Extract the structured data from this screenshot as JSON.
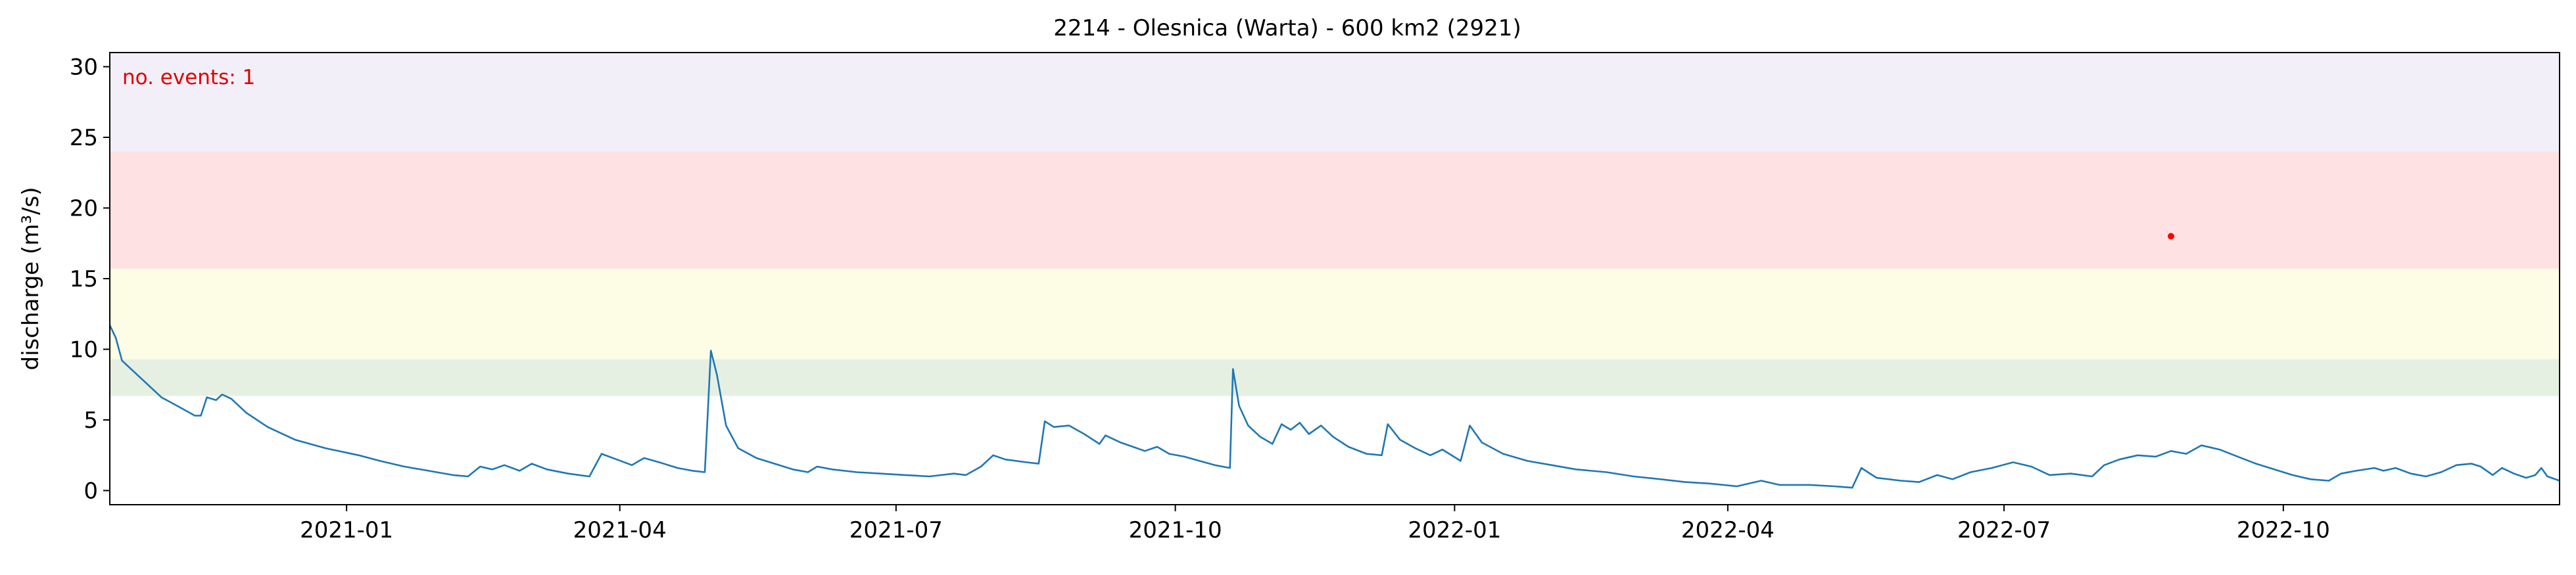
{
  "chart_data": {
    "type": "line",
    "title": "2214 - Olesnica (Warta) - 600 km2 (2921)",
    "ylabel": "discharge (m³/s)",
    "xlabel": "",
    "annotation": "no. events: 1",
    "x_range": [
      "2020-10-15",
      "2022-12-31"
    ],
    "ylim": [
      -1,
      31
    ],
    "x_ticks": [
      {
        "date": "2021-01-01",
        "label": "2021-01"
      },
      {
        "date": "2021-04-01",
        "label": "2021-04"
      },
      {
        "date": "2021-07-01",
        "label": "2021-07"
      },
      {
        "date": "2021-10-01",
        "label": "2021-10"
      },
      {
        "date": "2022-01-01",
        "label": "2022-01"
      },
      {
        "date": "2022-04-01",
        "label": "2022-04"
      },
      {
        "date": "2022-07-01",
        "label": "2022-07"
      },
      {
        "date": "2022-10-01",
        "label": "2022-10"
      }
    ],
    "y_ticks": [
      0,
      5,
      10,
      15,
      20,
      25,
      30
    ],
    "threshold_bands": [
      {
        "from": 6.7,
        "to": 9.3,
        "color": "#e5f0e3"
      },
      {
        "from": 9.3,
        "to": 15.7,
        "color": "#fdfde6"
      },
      {
        "from": 15.7,
        "to": 24.0,
        "color": "#fee2e3"
      },
      {
        "from": 24.0,
        "to": 31.0,
        "color": "#f3eff9"
      }
    ],
    "series": [
      {
        "color": "#1f77b4",
        "points": [
          [
            "2020-10-15",
            11.7
          ],
          [
            "2020-10-17",
            10.8
          ],
          [
            "2020-10-19",
            9.2
          ],
          [
            "2020-10-22",
            8.6
          ],
          [
            "2020-10-27",
            7.6
          ],
          [
            "2020-11-01",
            6.6
          ],
          [
            "2020-11-07",
            5.9
          ],
          [
            "2020-11-12",
            5.3
          ],
          [
            "2020-11-14",
            5.3
          ],
          [
            "2020-11-16",
            6.6
          ],
          [
            "2020-11-19",
            6.4
          ],
          [
            "2020-11-21",
            6.8
          ],
          [
            "2020-11-24",
            6.5
          ],
          [
            "2020-11-29",
            5.5
          ],
          [
            "2020-12-06",
            4.5
          ],
          [
            "2020-12-15",
            3.6
          ],
          [
            "2020-12-25",
            3.0
          ],
          [
            "2021-01-05",
            2.5
          ],
          [
            "2021-01-12",
            2.1
          ],
          [
            "2021-01-20",
            1.7
          ],
          [
            "2021-01-28",
            1.4
          ],
          [
            "2021-02-05",
            1.1
          ],
          [
            "2021-02-10",
            1.0
          ],
          [
            "2021-02-14",
            1.7
          ],
          [
            "2021-02-18",
            1.5
          ],
          [
            "2021-02-22",
            1.8
          ],
          [
            "2021-02-27",
            1.4
          ],
          [
            "2021-03-03",
            1.9
          ],
          [
            "2021-03-08",
            1.5
          ],
          [
            "2021-03-15",
            1.2
          ],
          [
            "2021-03-22",
            1.0
          ],
          [
            "2021-03-26",
            2.6
          ],
          [
            "2021-03-31",
            2.2
          ],
          [
            "2021-04-05",
            1.8
          ],
          [
            "2021-04-09",
            2.3
          ],
          [
            "2021-04-14",
            2.0
          ],
          [
            "2021-04-20",
            1.6
          ],
          [
            "2021-04-25",
            1.4
          ],
          [
            "2021-04-29",
            1.3
          ],
          [
            "2021-05-01",
            9.9
          ],
          [
            "2021-05-03",
            8.2
          ],
          [
            "2021-05-06",
            4.6
          ],
          [
            "2021-05-10",
            3.0
          ],
          [
            "2021-05-16",
            2.3
          ],
          [
            "2021-05-22",
            1.9
          ],
          [
            "2021-05-28",
            1.5
          ],
          [
            "2021-06-02",
            1.3
          ],
          [
            "2021-06-05",
            1.7
          ],
          [
            "2021-06-10",
            1.5
          ],
          [
            "2021-06-18",
            1.3
          ],
          [
            "2021-06-26",
            1.2
          ],
          [
            "2021-07-04",
            1.1
          ],
          [
            "2021-07-12",
            1.0
          ],
          [
            "2021-07-20",
            1.2
          ],
          [
            "2021-07-24",
            1.1
          ],
          [
            "2021-07-29",
            1.7
          ],
          [
            "2021-08-02",
            2.5
          ],
          [
            "2021-08-06",
            2.2
          ],
          [
            "2021-08-13",
            2.0
          ],
          [
            "2021-08-17",
            1.9
          ],
          [
            "2021-08-19",
            4.9
          ],
          [
            "2021-08-22",
            4.5
          ],
          [
            "2021-08-27",
            4.6
          ],
          [
            "2021-09-01",
            4.0
          ],
          [
            "2021-09-06",
            3.3
          ],
          [
            "2021-09-08",
            3.9
          ],
          [
            "2021-09-13",
            3.4
          ],
          [
            "2021-09-17",
            3.1
          ],
          [
            "2021-09-21",
            2.8
          ],
          [
            "2021-09-25",
            3.1
          ],
          [
            "2021-09-29",
            2.6
          ],
          [
            "2021-10-04",
            2.4
          ],
          [
            "2021-10-09",
            2.1
          ],
          [
            "2021-10-14",
            1.8
          ],
          [
            "2021-10-19",
            1.6
          ],
          [
            "2021-10-20",
            8.6
          ],
          [
            "2021-10-22",
            6.0
          ],
          [
            "2021-10-25",
            4.6
          ],
          [
            "2021-10-29",
            3.8
          ],
          [
            "2021-11-02",
            3.3
          ],
          [
            "2021-11-05",
            4.7
          ],
          [
            "2021-11-08",
            4.3
          ],
          [
            "2021-11-11",
            4.8
          ],
          [
            "2021-11-14",
            4.0
          ],
          [
            "2021-11-18",
            4.6
          ],
          [
            "2021-11-22",
            3.8
          ],
          [
            "2021-11-27",
            3.1
          ],
          [
            "2021-12-03",
            2.6
          ],
          [
            "2021-12-08",
            2.5
          ],
          [
            "2021-12-10",
            4.7
          ],
          [
            "2021-12-14",
            3.6
          ],
          [
            "2021-12-19",
            3.0
          ],
          [
            "2021-12-24",
            2.5
          ],
          [
            "2021-12-28",
            2.9
          ],
          [
            "2022-01-03",
            2.1
          ],
          [
            "2022-01-06",
            4.6
          ],
          [
            "2022-01-10",
            3.4
          ],
          [
            "2022-01-17",
            2.6
          ],
          [
            "2022-01-25",
            2.1
          ],
          [
            "2022-02-02",
            1.8
          ],
          [
            "2022-02-10",
            1.5
          ],
          [
            "2022-02-20",
            1.3
          ],
          [
            "2022-03-01",
            1.0
          ],
          [
            "2022-03-10",
            0.8
          ],
          [
            "2022-03-18",
            0.6
          ],
          [
            "2022-03-26",
            0.5
          ],
          [
            "2022-04-04",
            0.3
          ],
          [
            "2022-04-12",
            0.7
          ],
          [
            "2022-04-18",
            0.4
          ],
          [
            "2022-04-28",
            0.4
          ],
          [
            "2022-05-06",
            0.3
          ],
          [
            "2022-05-12",
            0.2
          ],
          [
            "2022-05-15",
            1.6
          ],
          [
            "2022-05-20",
            0.9
          ],
          [
            "2022-05-28",
            0.7
          ],
          [
            "2022-06-03",
            0.6
          ],
          [
            "2022-06-09",
            1.1
          ],
          [
            "2022-06-14",
            0.8
          ],
          [
            "2022-06-20",
            1.3
          ],
          [
            "2022-06-27",
            1.6
          ],
          [
            "2022-07-04",
            2.0
          ],
          [
            "2022-07-10",
            1.7
          ],
          [
            "2022-07-16",
            1.1
          ],
          [
            "2022-07-23",
            1.2
          ],
          [
            "2022-07-30",
            1.0
          ],
          [
            "2022-08-03",
            1.8
          ],
          [
            "2022-08-08",
            2.2
          ],
          [
            "2022-08-14",
            2.5
          ],
          [
            "2022-08-20",
            2.4
          ],
          [
            "2022-08-25",
            2.8
          ],
          [
            "2022-08-30",
            2.6
          ],
          [
            "2022-09-04",
            3.2
          ],
          [
            "2022-09-10",
            2.9
          ],
          [
            "2022-09-16",
            2.4
          ],
          [
            "2022-09-22",
            1.9
          ],
          [
            "2022-09-28",
            1.5
          ],
          [
            "2022-10-04",
            1.1
          ],
          [
            "2022-10-10",
            0.8
          ],
          [
            "2022-10-16",
            0.7
          ],
          [
            "2022-10-20",
            1.2
          ],
          [
            "2022-10-25",
            1.4
          ],
          [
            "2022-10-31",
            1.6
          ],
          [
            "2022-11-03",
            1.4
          ],
          [
            "2022-11-07",
            1.6
          ],
          [
            "2022-11-12",
            1.2
          ],
          [
            "2022-11-17",
            1.0
          ],
          [
            "2022-11-22",
            1.3
          ],
          [
            "2022-11-27",
            1.8
          ],
          [
            "2022-12-02",
            1.9
          ],
          [
            "2022-12-05",
            1.7
          ],
          [
            "2022-12-09",
            1.1
          ],
          [
            "2022-12-12",
            1.6
          ],
          [
            "2022-12-16",
            1.2
          ],
          [
            "2022-12-20",
            0.9
          ],
          [
            "2022-12-23",
            1.1
          ],
          [
            "2022-12-25",
            1.6
          ],
          [
            "2022-12-27",
            1.0
          ],
          [
            "2022-12-31",
            0.7
          ]
        ]
      }
    ],
    "event_marker": {
      "date": "2022-08-25",
      "value": 18.0,
      "color": "#ff0000"
    }
  }
}
